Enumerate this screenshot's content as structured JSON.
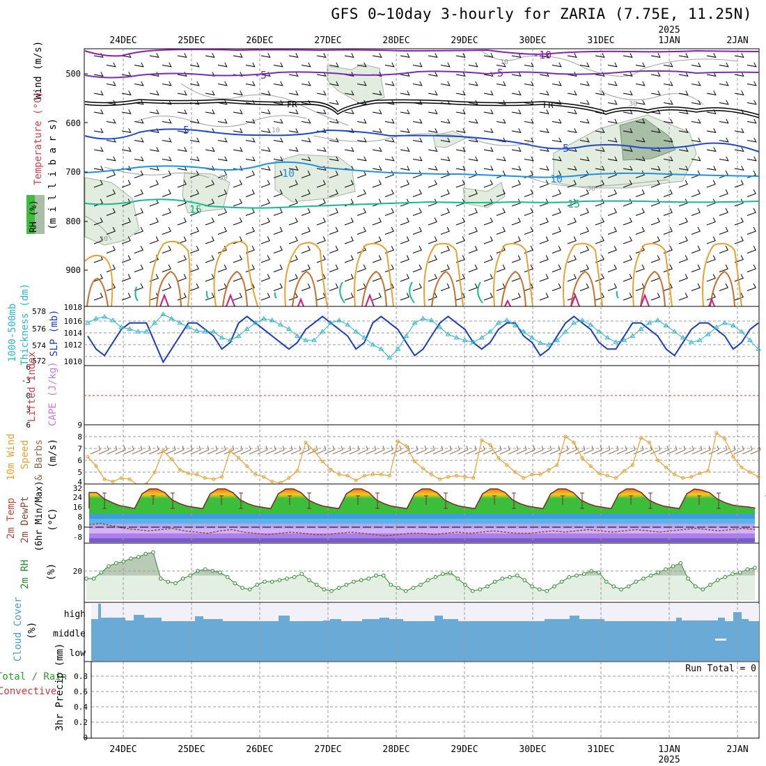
{
  "title": "GFS 0~10day 3-hourly for ZARIA (7.75E, 11.25N)",
  "year_label": "2025",
  "date_labels": [
    "24DEC",
    "25DEC",
    "26DEC",
    "27DEC",
    "28DEC",
    "29DEC",
    "30DEC",
    "31DEC",
    "1JAN",
    "2JAN"
  ],
  "run_total": "Run Total = 0",
  "panel_labels": {
    "upper": {
      "wind": "Wind (m/s)",
      "temp": "Temperature (°C)",
      "pres": "(m i l l i b a r s)",
      "rh": "RH (%)"
    },
    "thick": {
      "a": "1000-500mb",
      "b": "Thickness (dm)",
      "c": "SLP (mb)"
    },
    "cape": {
      "a": "Lifted Index",
      "b": "CAPE (J/kg)"
    },
    "wind10": {
      "a": "10m Wind",
      "b": "Speed",
      "c": "& Barbs",
      "d": "(m/s)"
    },
    "temp2m": {
      "a": "2m Temp",
      "b": "2m DewPt",
      "c": "(6hr Min/Max)",
      "d": "(°C)"
    },
    "rh2m": {
      "a": "2m RH",
      "b": "(%)"
    },
    "cloud": {
      "a": "Cloud Cover",
      "b": "(%)",
      "levels": [
        "high",
        "middle",
        "low"
      ]
    },
    "precip": {
      "a": "Total / Rain",
      "b": "Convective",
      "c": "3hr Precip (mm)"
    }
  },
  "colors": {
    "temp_neg10": "#8a1fb0",
    "temp_neg5": "#7a2ab8",
    "freezing": "#000000",
    "temp5": "#1f48c8",
    "temp10": "#1e90e0",
    "temp15": "#18b890",
    "rh_fill": "#e0ecdf",
    "rh_dark": "#a9bfa8",
    "thick": "#1a3cbf",
    "slp": "#2ab5c8",
    "wind10": "#e8a030",
    "dewpt": "#8b4a3a",
    "rh2m": "#2a8a2a",
    "cloud": "#6aaad6",
    "grid": "#9a9a9a",
    "li_zero": "#e03030"
  },
  "chart_data": [
    {
      "type": "line",
      "name": "upper_air_cross_section",
      "title": "",
      "ylabel": "(m i l l i b a r s)",
      "y_ticks": [
        500,
        600,
        700,
        800,
        900
      ],
      "ylim": [
        1000,
        450
      ],
      "contour_labels": [
        "-10",
        "-5",
        "FR",
        "5",
        "10",
        "15",
        "-10",
        "-5",
        "FR",
        "5",
        "10",
        "15"
      ],
      "rh_labels": [
        "10",
        "30",
        "10",
        "30",
        "30",
        "30"
      ],
      "series": [
        {
          "name": "-10",
          "level_mb": 458
        },
        {
          "name": "-5",
          "level_mb": 502
        },
        {
          "name": "FR",
          "level_mb": 560
        },
        {
          "name": "5",
          "level_mb": 625
        },
        {
          "name": "10",
          "level_mb": 705
        },
        {
          "name": "15",
          "level_mb": 766
        }
      ]
    },
    {
      "type": "line",
      "name": "thickness_slp",
      "ylim_thick": [
        572,
        578
      ],
      "y_ticks_thick": [
        572,
        574,
        576,
        578
      ],
      "ylim_slp": [
        1010,
        1018
      ],
      "y_ticks_slp": [
        1010,
        1012,
        1014,
        1016,
        1018
      ],
      "series": [
        {
          "name": "SLP (mb)",
          "values": [
            1014,
            1012,
            1011,
            1013,
            1015,
            1016,
            1016,
            1016,
            1013,
            1010,
            1012,
            1014,
            1016,
            1016,
            1015,
            1014,
            1012,
            1013,
            1016,
            1017,
            1016,
            1015,
            1014,
            1013,
            1012,
            1013,
            1015,
            1016,
            1017,
            1016,
            1015,
            1014,
            1012,
            1013,
            1016,
            1017,
            1016,
            1015,
            1013,
            1011,
            1012,
            1014,
            1016,
            1017,
            1016,
            1015,
            1013,
            1012,
            1013,
            1015,
            1016,
            1016,
            1014,
            1013,
            1011,
            1012,
            1014,
            1016,
            1017,
            1016,
            1015,
            1013,
            1012,
            1012,
            1014,
            1016,
            1016,
            1015,
            1014,
            1012,
            1011,
            1013,
            1015,
            1016,
            1016,
            1015,
            1014,
            1012,
            1013,
            1015,
            1016
          ]
        },
        {
          "name": "1000-500mb Thickness (dm)",
          "values": [
            576.5,
            577,
            577.2,
            576.8,
            576,
            575.8,
            575.5,
            575.5,
            576.5,
            577.5,
            577,
            576.5,
            576,
            575.6,
            575.5,
            575.5,
            574.8,
            574.5,
            575,
            575.8,
            576.5,
            577,
            576.8,
            576.3,
            575.8,
            575,
            574.5,
            574.5,
            575.5,
            576.5,
            576.8,
            576.3,
            575.5,
            574.8,
            574,
            573.5,
            572.5,
            573.5,
            575,
            576.5,
            577,
            576.8,
            576,
            575.2,
            574.8,
            574.5,
            574.3,
            574.8,
            575.5,
            576.5,
            576.8,
            576.2,
            575.5,
            574.8,
            574.2,
            574,
            574.5,
            575.5,
            576.5,
            576.8,
            576.3,
            575.5,
            574.8,
            574.3,
            574.5,
            575,
            575.8,
            576.5,
            576.8,
            576.2,
            575.5,
            574.8,
            574.3,
            574.5,
            575.2,
            576,
            576.5,
            576.2,
            575.5,
            574.5,
            573.5
          ]
        }
      ]
    },
    {
      "type": "line",
      "name": "cape_lifted_index",
      "y_ticks_li": [
        -3,
        0,
        3,
        6
      ],
      "ylim_li": [
        6,
        -6
      ],
      "series": [
        {
          "name": "Lifted Index",
          "values": [
            0
          ]
        }
      ]
    },
    {
      "type": "line",
      "name": "wind10m",
      "ylabel": "(m/s)",
      "ylim": [
        4,
        9
      ],
      "y_ticks": [
        4,
        5,
        6,
        7,
        8,
        9
      ],
      "series": [
        {
          "name": "10m Wind Speed",
          "values": [
            6.3,
            5.5,
            4.4,
            4.2,
            4.5,
            4.4,
            3.9,
            4.0,
            5.0,
            6.8,
            6.1,
            5.2,
            4.9,
            4.8,
            4.5,
            4.4,
            4.6,
            6.8,
            6.2,
            5.5,
            4.8,
            4.6,
            4.2,
            4.1,
            4.5,
            5.1,
            7.5,
            6.8,
            5.9,
            5.2,
            4.8,
            4.7,
            4.3,
            4.7,
            4.8,
            4.8,
            4.7,
            7.6,
            7.2,
            5.9,
            5.3,
            4.8,
            4.4,
            4.6,
            4.7,
            4.6,
            4.5,
            7.7,
            7.3,
            6.2,
            5.6,
            5.0,
            4.5,
            4.8,
            4.8,
            5.2,
            5.6,
            8.0,
            7.5,
            6.2,
            5.5,
            4.9,
            4.7,
            4.5,
            5.1,
            5.6,
            7.9,
            7.5,
            6.0,
            5.4,
            4.8,
            4.5,
            4.6,
            4.9,
            5.1,
            8.3,
            7.8,
            6.3,
            5.4,
            5.0,
            4.6
          ]
        }
      ]
    },
    {
      "type": "area",
      "name": "temp2m",
      "ylabel": "(°C)",
      "ylim": [
        -14,
        34
      ],
      "y_ticks": [
        -8,
        0,
        8,
        16,
        24,
        32
      ],
      "series": [
        {
          "name": "2m Temp",
          "values": [
            27,
            27,
            22,
            19,
            16.5,
            15.5,
            14,
            26,
            30,
            30,
            27,
            21,
            18,
            16,
            15,
            14,
            26,
            30,
            30,
            27,
            21,
            18,
            16,
            15,
            14,
            26,
            30,
            30,
            27,
            21,
            18,
            16,
            15,
            14,
            26,
            30,
            30,
            27,
            21,
            18,
            16,
            15,
            14,
            26,
            30,
            30,
            27,
            21,
            18,
            16,
            15,
            14,
            26,
            30,
            30,
            27,
            21,
            18,
            16,
            15,
            14,
            26,
            30,
            30,
            27,
            21,
            18,
            16,
            15,
            14,
            26,
            30,
            30,
            27,
            21,
            18,
            16,
            15,
            14,
            26,
            30,
            29,
            27,
            22,
            19,
            17,
            16,
            15.5,
            14.5
          ]
        },
        {
          "name": "2m DewPt",
          "values": [
            1,
            2,
            0,
            -2,
            -3,
            -4,
            -3,
            -2,
            -4,
            -5,
            -6,
            -4,
            -3,
            -5,
            -6,
            -7,
            -6,
            -5,
            -6,
            -7,
            -7,
            -6,
            -5,
            -6,
            -7,
            -8,
            -7,
            -6,
            -6,
            -7,
            -6,
            -5,
            -6,
            -5,
            -4,
            -5,
            -6,
            -6,
            -5,
            -4,
            -5,
            -4,
            -3,
            -4,
            -5,
            -4,
            -3,
            -4,
            -5,
            -4,
            -3,
            -2,
            -3,
            -4,
            -3,
            -2,
            -3
          ]
        }
      ]
    },
    {
      "type": "area",
      "name": "rh2m",
      "ylabel": "(%)",
      "ylim": [
        4,
        40
      ],
      "y_ticks": [
        20
      ],
      "series": [
        {
          "name": "2m RH",
          "values": [
            18,
            18,
            22,
            26,
            28,
            29,
            31,
            32,
            34,
            35,
            18,
            16,
            15,
            18,
            20,
            23,
            24,
            23,
            22,
            19,
            15,
            12,
            11,
            14,
            16,
            16,
            17,
            18,
            19,
            21,
            17,
            14,
            11,
            10,
            12,
            14,
            16,
            17,
            18,
            20,
            20,
            14,
            12,
            10,
            12,
            14,
            17,
            19,
            21,
            22,
            18,
            14,
            10,
            11,
            13,
            16,
            18,
            19,
            20,
            17,
            13,
            11,
            10,
            13,
            16,
            19,
            20,
            21,
            23,
            22,
            16,
            13,
            11,
            13,
            16,
            18,
            20,
            22,
            24,
            26,
            28,
            18,
            13,
            11,
            14,
            17,
            19,
            21,
            22,
            24,
            25
          ]
        }
      ]
    },
    {
      "type": "bar",
      "name": "cloud_cover",
      "ylabel": "(%)",
      "categories": [
        "high",
        "middle",
        "low"
      ]
    },
    {
      "type": "bar",
      "name": "precip",
      "ylabel": "3hr Precip (mm)",
      "ylim": [
        0,
        1
      ],
      "y_ticks": [
        0,
        0.2,
        0.4,
        0.6,
        0.8
      ],
      "values": [
        0
      ]
    }
  ]
}
